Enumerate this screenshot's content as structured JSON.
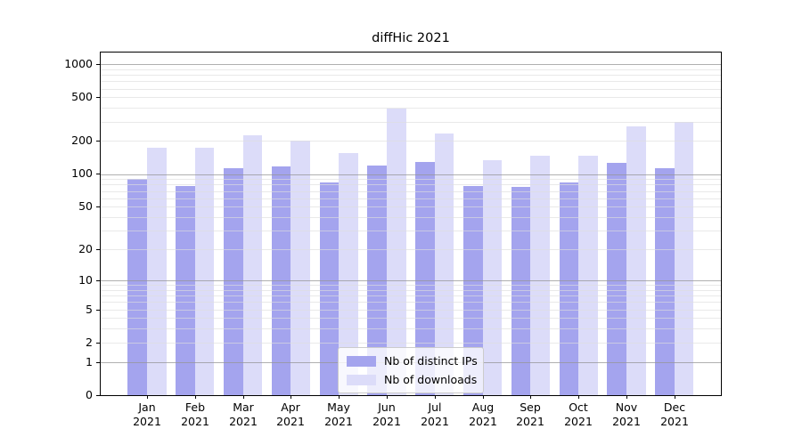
{
  "chart_data": {
    "type": "bar",
    "title": "diffHic 2021",
    "scale": "log10(1+y)",
    "grid": "on",
    "legend_position": "lower center",
    "categories": [
      "Jan 2021",
      "Feb 2021",
      "Mar 2021",
      "Apr 2021",
      "May 2021",
      "Jun 2021",
      "Jul 2021",
      "Aug 2021",
      "Sep 2021",
      "Oct 2021",
      "Nov 2021",
      "Dec 2021"
    ],
    "series": [
      {
        "name": "Nb of distinct IPs",
        "color": "#a4a4ee",
        "values": [
          90,
          78,
          113,
          118,
          84,
          120,
          128,
          77,
          76,
          84,
          127,
          114
        ]
      },
      {
        "name": "Nb of downloads",
        "color": "#dcdcf9",
        "values": [
          173,
          173,
          224,
          200,
          155,
          396,
          233,
          135,
          146,
          147,
          274,
          297
        ]
      }
    ],
    "y_ticks": [
      0,
      1,
      2,
      5,
      10,
      20,
      50,
      100,
      200,
      500,
      1000
    ],
    "grid_major": [
      1,
      10,
      100,
      1000
    ],
    "grid_minor": [
      2,
      3,
      4,
      5,
      6,
      7,
      8,
      9,
      20,
      30,
      40,
      50,
      60,
      70,
      80,
      90,
      200,
      300,
      400,
      500,
      600,
      700,
      800,
      900
    ],
    "ylim": [
      0,
      1273
    ]
  }
}
